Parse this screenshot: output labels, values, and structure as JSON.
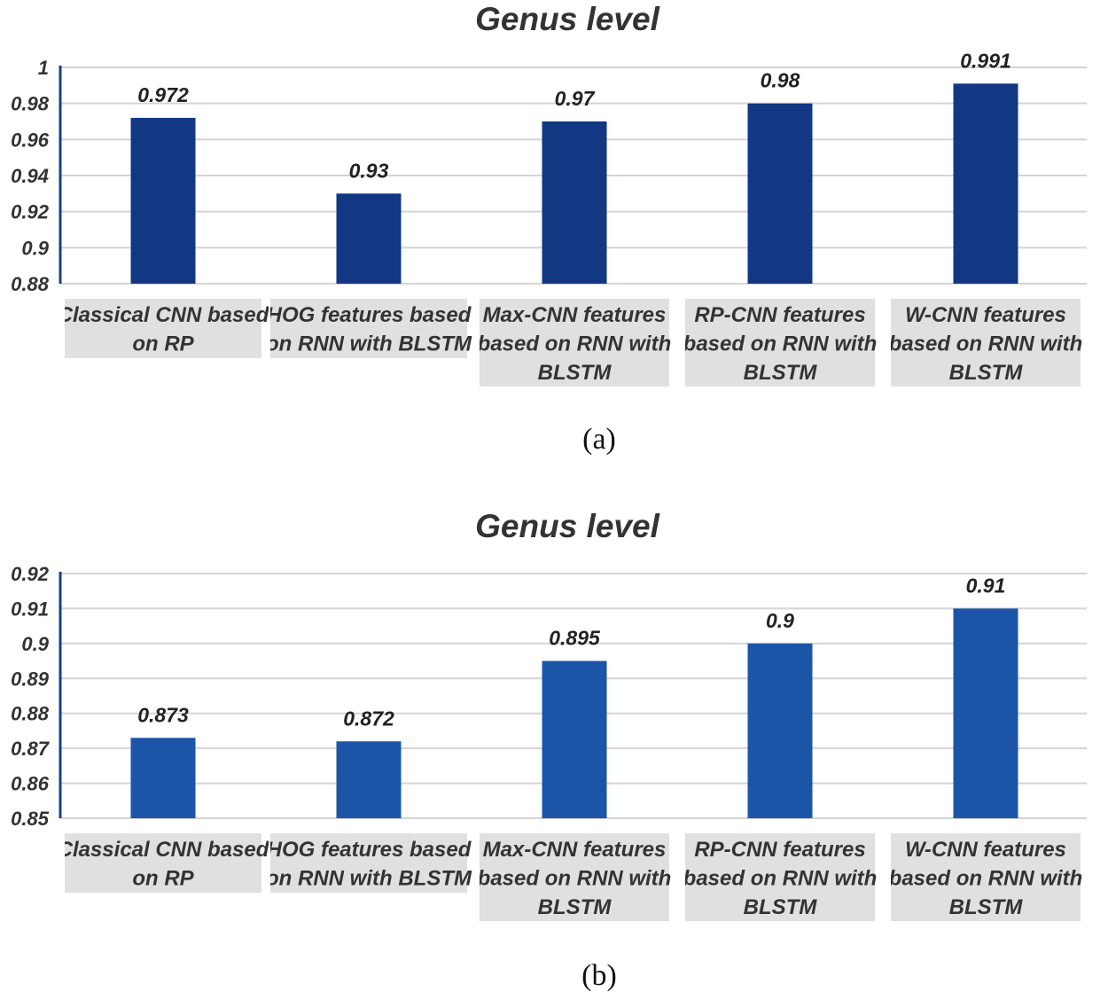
{
  "chart_data": [
    {
      "type": "bar",
      "title": "Genus level",
      "caption": "(a)",
      "categories": [
        [
          "Classical CNN based",
          "on RP"
        ],
        [
          "HOG features based",
          "on RNN with BLSTM"
        ],
        [
          "Max-CNN features",
          "based on RNN with",
          "BLSTM"
        ],
        [
          "RP-CNN features",
          "based on RNN with",
          "BLSTM"
        ],
        [
          "W-CNN features",
          "based on RNN with",
          "BLSTM"
        ]
      ],
      "values": [
        0.972,
        0.93,
        0.97,
        0.98,
        0.991
      ],
      "data_labels": [
        "0.972",
        "0.93",
        "0.97",
        "0.98",
        "0.991"
      ],
      "ylim": [
        0.88,
        1.0
      ],
      "y_ticks": [
        "0.88",
        "0.9",
        "0.92",
        "0.94",
        "0.96",
        "0.98",
        "1"
      ],
      "y_tick_values": [
        0.88,
        0.9,
        0.92,
        0.94,
        0.96,
        0.98,
        1.0
      ],
      "grid": true,
      "legend": "none",
      "bar_color": "#123884"
    },
    {
      "type": "bar",
      "title": "Genus level",
      "caption": "(b)",
      "categories": [
        [
          "Classical CNN based",
          "on RP"
        ],
        [
          "HOG features based",
          "on RNN with BLSTM"
        ],
        [
          "Max-CNN features",
          "based on RNN with",
          "BLSTM"
        ],
        [
          "RP-CNN features",
          "based on RNN with",
          "BLSTM"
        ],
        [
          "W-CNN features",
          "based on RNN with",
          "BLSTM"
        ]
      ],
      "values": [
        0.873,
        0.872,
        0.895,
        0.9,
        0.91
      ],
      "data_labels": [
        "0.873",
        "0.872",
        "0.895",
        "0.9",
        "0.91"
      ],
      "ylim": [
        0.85,
        0.92
      ],
      "y_ticks": [
        "0.85",
        "0.86",
        "0.87",
        "0.88",
        "0.89",
        "0.9",
        "0.91",
        "0.92"
      ],
      "y_tick_values": [
        0.85,
        0.86,
        0.87,
        0.88,
        0.89,
        0.9,
        0.91,
        0.92
      ],
      "grid": true,
      "legend": "none",
      "bar_color": "#1c55a8"
    }
  ]
}
